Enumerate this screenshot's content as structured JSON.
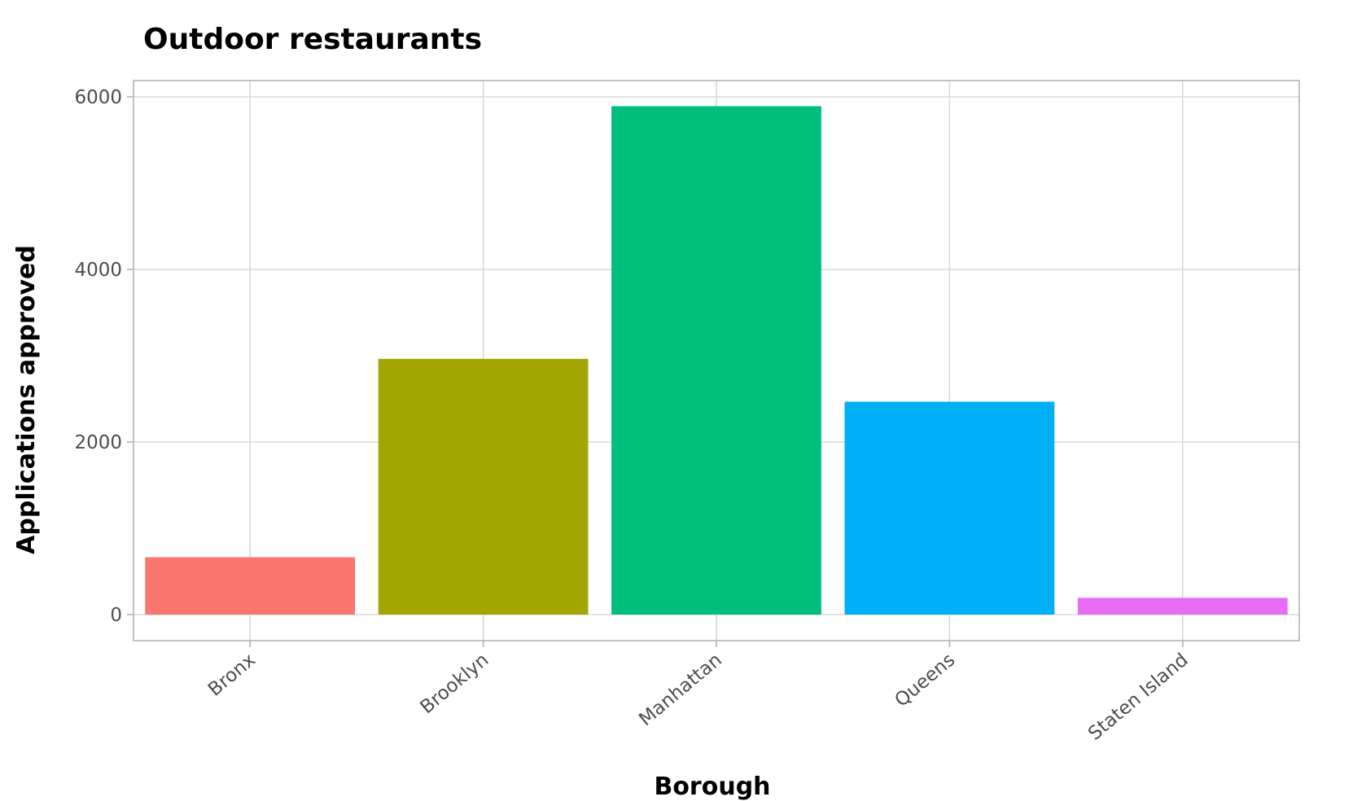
{
  "chart_data": {
    "type": "bar",
    "title": "Outdoor restaurants",
    "xlabel": "Borough",
    "ylabel": "Applications approved",
    "categories": [
      "Bronx",
      "Brooklyn",
      "Manhattan",
      "Queens",
      "Staten Island"
    ],
    "values": [
      665,
      2964,
      5892,
      2467,
      195
    ],
    "colors": [
      "#F8766D",
      "#A3A500",
      "#00BF7D",
      "#00B0F6",
      "#E76BF3"
    ],
    "ylim": [
      -300,
      6200
    ],
    "yticks": [
      0,
      2000,
      4000,
      6000
    ],
    "ytick_labels": [
      "0",
      "2000",
      "4000",
      "6000"
    ],
    "grid": true,
    "legend": "none"
  }
}
